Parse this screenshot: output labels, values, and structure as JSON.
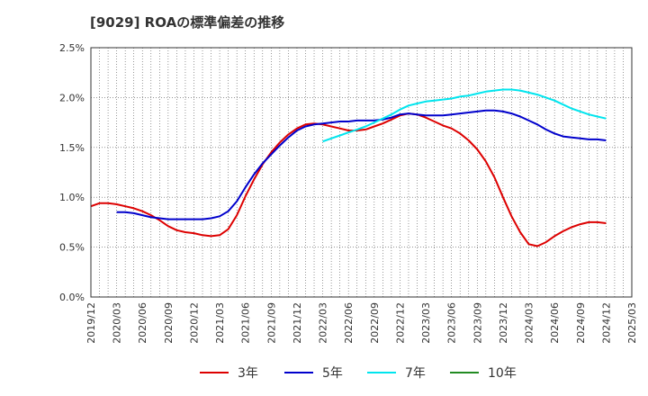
{
  "chart_data": {
    "type": "line",
    "title": "[9029]  ROAの標準偏差の推移",
    "xlabel": "",
    "ylabel": "",
    "ylim": [
      0,
      0.025
    ],
    "y_ticks": [
      "0.0%",
      "0.5%",
      "1.0%",
      "1.5%",
      "2.0%",
      "2.5%"
    ],
    "x_ticks": [
      "2019/12",
      "2020/03",
      "2020/06",
      "2020/09",
      "2020/12",
      "2021/03",
      "2021/06",
      "2021/09",
      "2021/12",
      "2022/03",
      "2022/06",
      "2022/09",
      "2022/12",
      "2023/03",
      "2023/06",
      "2023/09",
      "2023/12",
      "2024/03",
      "2024/06",
      "2024/09",
      "2024/12",
      "2025/03"
    ],
    "grid": true,
    "legend_position": "bottom",
    "colors": {
      "3年": "#dd0000",
      "5年": "#0000cc",
      "7年": "#00e5ee",
      "10年": "#228b22"
    },
    "series": [
      {
        "name": "3年",
        "values": [
          [
            "2019/12",
            0.0091
          ],
          [
            "2020/01",
            0.0094
          ],
          [
            "2020/02",
            0.0094
          ],
          [
            "2020/03",
            0.0093
          ],
          [
            "2020/04",
            0.0091
          ],
          [
            "2020/05",
            0.0089
          ],
          [
            "2020/06",
            0.0086
          ],
          [
            "2020/07",
            0.0082
          ],
          [
            "2020/08",
            0.0077
          ],
          [
            "2020/09",
            0.0071
          ],
          [
            "2020/10",
            0.0067
          ],
          [
            "2020/11",
            0.0065
          ],
          [
            "2020/12",
            0.0064
          ],
          [
            "2021/01",
            0.0062
          ],
          [
            "2021/02",
            0.0061
          ],
          [
            "2021/03",
            0.0062
          ],
          [
            "2021/04",
            0.0068
          ],
          [
            "2021/05",
            0.0082
          ],
          [
            "2021/06",
            0.0101
          ],
          [
            "2021/07",
            0.0118
          ],
          [
            "2021/08",
            0.0133
          ],
          [
            "2021/09",
            0.0145
          ],
          [
            "2021/10",
            0.0155
          ],
          [
            "2021/11",
            0.0163
          ],
          [
            "2021/12",
            0.0169
          ],
          [
            "2022/01",
            0.0173
          ],
          [
            "2022/02",
            0.0174
          ],
          [
            "2022/03",
            0.0173
          ],
          [
            "2022/04",
            0.0171
          ],
          [
            "2022/05",
            0.0169
          ],
          [
            "2022/06",
            0.0167
          ],
          [
            "2022/07",
            0.0167
          ],
          [
            "2022/08",
            0.0168
          ],
          [
            "2022/09",
            0.0171
          ],
          [
            "2022/10",
            0.0174
          ],
          [
            "2022/11",
            0.0178
          ],
          [
            "2022/12",
            0.0182
          ],
          [
            "2023/01",
            0.0184
          ],
          [
            "2023/02",
            0.0183
          ],
          [
            "2023/03",
            0.018
          ],
          [
            "2023/04",
            0.0176
          ],
          [
            "2023/05",
            0.0172
          ],
          [
            "2023/06",
            0.0169
          ],
          [
            "2023/07",
            0.0164
          ],
          [
            "2023/08",
            0.0157
          ],
          [
            "2023/09",
            0.0148
          ],
          [
            "2023/10",
            0.0136
          ],
          [
            "2023/11",
            0.012
          ],
          [
            "2023/12",
            0.01
          ],
          [
            "2024/01",
            0.0081
          ],
          [
            "2024/02",
            0.0065
          ],
          [
            "2024/03",
            0.0053
          ],
          [
            "2024/04",
            0.0051
          ],
          [
            "2024/05",
            0.0055
          ],
          [
            "2024/06",
            0.0061
          ],
          [
            "2024/07",
            0.0066
          ],
          [
            "2024/08",
            0.007
          ],
          [
            "2024/09",
            0.0073
          ],
          [
            "2024/10",
            0.0075
          ],
          [
            "2024/11",
            0.0075
          ],
          [
            "2024/12",
            0.0074
          ]
        ]
      },
      {
        "name": "5年",
        "values": [
          [
            "2020/03",
            0.0085
          ],
          [
            "2020/04",
            0.0085
          ],
          [
            "2020/05",
            0.0084
          ],
          [
            "2020/06",
            0.0082
          ],
          [
            "2020/07",
            0.008
          ],
          [
            "2020/08",
            0.0079
          ],
          [
            "2020/09",
            0.0078
          ],
          [
            "2020/10",
            0.0078
          ],
          [
            "2020/11",
            0.0078
          ],
          [
            "2020/12",
            0.0078
          ],
          [
            "2021/01",
            0.0078
          ],
          [
            "2021/02",
            0.0079
          ],
          [
            "2021/03",
            0.0081
          ],
          [
            "2021/04",
            0.0086
          ],
          [
            "2021/05",
            0.0096
          ],
          [
            "2021/06",
            0.011
          ],
          [
            "2021/07",
            0.0123
          ],
          [
            "2021/08",
            0.0134
          ],
          [
            "2021/09",
            0.0143
          ],
          [
            "2021/10",
            0.0152
          ],
          [
            "2021/11",
            0.016
          ],
          [
            "2021/12",
            0.0167
          ],
          [
            "2022/01",
            0.0171
          ],
          [
            "2022/02",
            0.0173
          ],
          [
            "2022/03",
            0.0174
          ],
          [
            "2022/04",
            0.0175
          ],
          [
            "2022/05",
            0.0176
          ],
          [
            "2022/06",
            0.0176
          ],
          [
            "2022/07",
            0.0177
          ],
          [
            "2022/08",
            0.0177
          ],
          [
            "2022/09",
            0.0177
          ],
          [
            "2022/10",
            0.0178
          ],
          [
            "2022/11",
            0.018
          ],
          [
            "2022/12",
            0.0183
          ],
          [
            "2023/01",
            0.0184
          ],
          [
            "2023/02",
            0.0183
          ],
          [
            "2023/03",
            0.0182
          ],
          [
            "2023/04",
            0.0182
          ],
          [
            "2023/05",
            0.0182
          ],
          [
            "2023/06",
            0.0183
          ],
          [
            "2023/07",
            0.0184
          ],
          [
            "2023/08",
            0.0185
          ],
          [
            "2023/09",
            0.0186
          ],
          [
            "2023/10",
            0.0187
          ],
          [
            "2023/11",
            0.0187
          ],
          [
            "2023/12",
            0.0186
          ],
          [
            "2024/01",
            0.0184
          ],
          [
            "2024/02",
            0.0181
          ],
          [
            "2024/03",
            0.0177
          ],
          [
            "2024/04",
            0.0173
          ],
          [
            "2024/05",
            0.0168
          ],
          [
            "2024/06",
            0.0164
          ],
          [
            "2024/07",
            0.0161
          ],
          [
            "2024/08",
            0.016
          ],
          [
            "2024/09",
            0.0159
          ],
          [
            "2024/10",
            0.0158
          ],
          [
            "2024/11",
            0.0158
          ],
          [
            "2024/12",
            0.0157
          ]
        ]
      },
      {
        "name": "7年",
        "values": [
          [
            "2022/03",
            0.0156
          ],
          [
            "2022/04",
            0.0159
          ],
          [
            "2022/05",
            0.0162
          ],
          [
            "2022/06",
            0.0165
          ],
          [
            "2022/07",
            0.0168
          ],
          [
            "2022/08",
            0.0171
          ],
          [
            "2022/09",
            0.0175
          ],
          [
            "2022/10",
            0.0179
          ],
          [
            "2022/11",
            0.0183
          ],
          [
            "2022/12",
            0.0188
          ],
          [
            "2023/01",
            0.0192
          ],
          [
            "2023/02",
            0.0194
          ],
          [
            "2023/03",
            0.0196
          ],
          [
            "2023/04",
            0.0197
          ],
          [
            "2023/05",
            0.0198
          ],
          [
            "2023/06",
            0.0199
          ],
          [
            "2023/07",
            0.0201
          ],
          [
            "2023/08",
            0.0202
          ],
          [
            "2023/09",
            0.0204
          ],
          [
            "2023/10",
            0.0206
          ],
          [
            "2023/11",
            0.0207
          ],
          [
            "2023/12",
            0.0208
          ],
          [
            "2024/01",
            0.0208
          ],
          [
            "2024/02",
            0.0207
          ],
          [
            "2024/03",
            0.0205
          ],
          [
            "2024/04",
            0.0203
          ],
          [
            "2024/05",
            0.02
          ],
          [
            "2024/06",
            0.0197
          ],
          [
            "2024/07",
            0.0193
          ],
          [
            "2024/08",
            0.0189
          ],
          [
            "2024/09",
            0.0186
          ],
          [
            "2024/10",
            0.0183
          ],
          [
            "2024/11",
            0.0181
          ],
          [
            "2024/12",
            0.0179
          ]
        ]
      },
      {
        "name": "10年",
        "values": []
      }
    ]
  }
}
